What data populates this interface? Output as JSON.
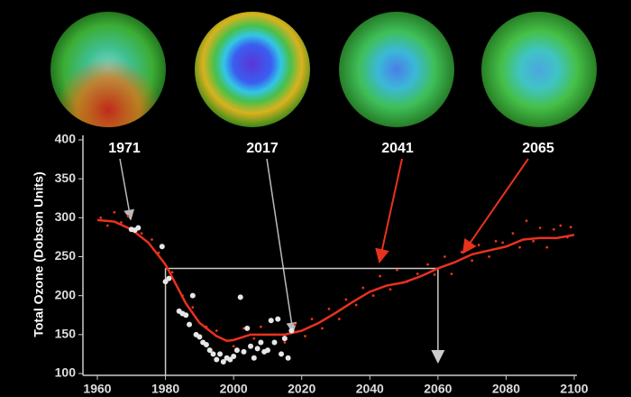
{
  "chart_data": {
    "type": "line",
    "ylabel": "Total Ozone (Dobson Units)",
    "xlim": [
      1960,
      2100
    ],
    "ylim": [
      100,
      400
    ],
    "xticks": [
      1960,
      1980,
      2000,
      2020,
      2040,
      2060,
      2080,
      2100
    ],
    "yticks": [
      100,
      150,
      200,
      250,
      300,
      350,
      400
    ],
    "series": [
      {
        "style": "line",
        "color": "#e8321e",
        "x": [
          1960,
          1965,
          1970,
          1975,
          1980,
          1983,
          1986,
          1990,
          1995,
          1998,
          2000,
          2005,
          2010,
          2015,
          2020,
          2025,
          2030,
          2035,
          2040,
          2045,
          2050,
          2055,
          2060,
          2065,
          2070,
          2075,
          2080,
          2085,
          2090,
          2095,
          2100
        ],
        "values": [
          297,
          295,
          285,
          268,
          240,
          215,
          190,
          165,
          148,
          142,
          143,
          150,
          150,
          150,
          155,
          165,
          178,
          192,
          205,
          213,
          217,
          225,
          235,
          243,
          253,
          258,
          263,
          272,
          274,
          274,
          278
        ]
      },
      {
        "style": "dots",
        "color": "#e8321e",
        "x": [
          1961,
          1963,
          1965,
          1967,
          1969,
          1973,
          1976,
          1978,
          1982,
          1985,
          1988,
          1992,
          1995,
          2000,
          2003,
          2006,
          2008,
          2012,
          2015,
          2018,
          2021,
          2023,
          2026,
          2028,
          2031,
          2033,
          2036,
          2038,
          2041,
          2043,
          2046,
          2048,
          2051,
          2054,
          2057,
          2059,
          2062,
          2064,
          2067,
          2070,
          2072,
          2075,
          2077,
          2079,
          2082,
          2084,
          2086,
          2088,
          2090,
          2092,
          2094,
          2096,
          2098,
          2099
        ],
        "values": [
          300,
          290,
          307,
          294,
          302,
          280,
          272,
          255,
          230,
          200,
          185,
          160,
          155,
          135,
          158,
          145,
          160,
          150,
          140,
          163,
          148,
          170,
          158,
          183,
          170,
          195,
          188,
          210,
          200,
          225,
          208,
          233,
          218,
          228,
          240,
          227,
          250,
          228,
          256,
          245,
          265,
          250,
          270,
          268,
          280,
          262,
          296,
          270,
          287,
          262,
          285,
          290,
          275,
          288
        ]
      },
      {
        "style": "dots",
        "color": "#e6e6e6",
        "x": [
          1970,
          1971,
          1972,
          1979,
          1980,
          1981,
          1984,
          1985,
          1986,
          1987,
          1988,
          1989,
          1990,
          1991,
          1992,
          1993,
          1994,
          1995,
          1996,
          1997,
          1998,
          1999,
          2000,
          2001,
          2002,
          2003,
          2004,
          2005,
          2006,
          2007,
          2008,
          2009,
          2010,
          2011,
          2012,
          2013,
          2014,
          2015,
          2016,
          2017
        ],
        "values": [
          285,
          284,
          287,
          263,
          218,
          222,
          180,
          177,
          175,
          163,
          200,
          150,
          147,
          140,
          137,
          130,
          125,
          118,
          125,
          115,
          120,
          118,
          122,
          130,
          198,
          128,
          158,
          135,
          120,
          132,
          140,
          128,
          130,
          168,
          140,
          170,
          125,
          145,
          120,
          155
        ]
      }
    ],
    "reference": {
      "level": 235,
      "years": [
        1980,
        2060
      ],
      "color": "#cccccc"
    },
    "annotations": [
      "1971",
      "2017",
      "2041",
      "2065"
    ]
  }
}
